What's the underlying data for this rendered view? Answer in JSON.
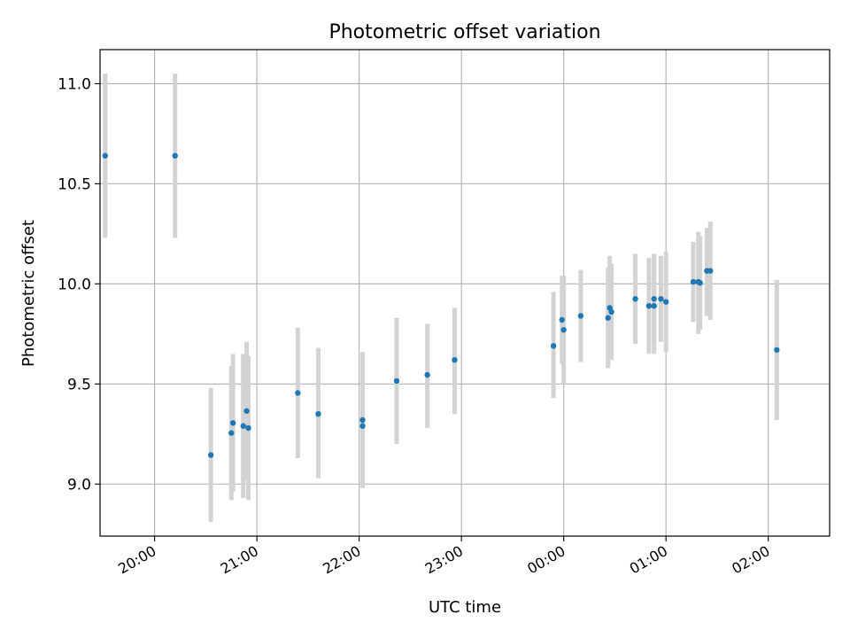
{
  "chart_data": {
    "type": "scatter",
    "title": "Photometric offset variation",
    "xlabel": "UTC time",
    "ylabel": "Photometric offset",
    "xlim": [
      "19:28",
      "02:36"
    ],
    "ylim": [
      8.74,
      11.17
    ],
    "x_ticks": [
      "20:00",
      "21:00",
      "22:00",
      "23:00",
      "00:00",
      "01:00",
      "02:00"
    ],
    "y_ticks": [
      "9.0",
      "9.5",
      "10.0",
      "10.5",
      "11.0"
    ],
    "grid": true,
    "points": [
      {
        "t": "19:31",
        "y": 10.64,
        "err_lo": 10.23,
        "err_hi": 11.05
      },
      {
        "t": "20:12",
        "y": 10.64,
        "err_lo": 10.23,
        "err_hi": 11.05
      },
      {
        "t": "20:33",
        "y": 9.145,
        "err_lo": 8.81,
        "err_hi": 9.48
      },
      {
        "t": "20:45",
        "y": 9.255,
        "err_lo": 8.92,
        "err_hi": 9.59
      },
      {
        "t": "20:46",
        "y": 9.305,
        "err_lo": 8.96,
        "err_hi": 9.65
      },
      {
        "t": "20:52",
        "y": 9.29,
        "err_lo": 8.93,
        "err_hi": 9.65
      },
      {
        "t": "20:54",
        "y": 9.365,
        "err_lo": 9.02,
        "err_hi": 9.71
      },
      {
        "t": "20:55",
        "y": 9.28,
        "err_lo": 8.92,
        "err_hi": 9.64
      },
      {
        "t": "21:24",
        "y": 9.455,
        "err_lo": 9.13,
        "err_hi": 9.78
      },
      {
        "t": "21:36",
        "y": 9.35,
        "err_lo": 9.03,
        "err_hi": 9.68
      },
      {
        "t": "22:02",
        "y": 9.29,
        "err_lo": 8.98,
        "err_hi": 9.6
      },
      {
        "t": "22:02",
        "y": 9.32,
        "err_lo": 9.0,
        "err_hi": 9.66
      },
      {
        "t": "22:22",
        "y": 9.515,
        "err_lo": 9.2,
        "err_hi": 9.83
      },
      {
        "t": "22:40",
        "y": 9.545,
        "err_lo": 9.28,
        "err_hi": 9.8
      },
      {
        "t": "22:56",
        "y": 9.62,
        "err_lo": 9.35,
        "err_hi": 9.88
      },
      {
        "t": "23:54",
        "y": 9.69,
        "err_lo": 9.43,
        "err_hi": 9.96
      },
      {
        "t": "23:59",
        "y": 9.82,
        "err_lo": 9.6,
        "err_hi": 10.04
      },
      {
        "t": "00:00",
        "y": 9.77,
        "err_lo": 9.5,
        "err_hi": 10.04
      },
      {
        "t": "00:10",
        "y": 9.84,
        "err_lo": 9.61,
        "err_hi": 10.07
      },
      {
        "t": "00:26",
        "y": 9.83,
        "err_lo": 9.58,
        "err_hi": 10.08
      },
      {
        "t": "00:27",
        "y": 9.88,
        "err_lo": 9.62,
        "err_hi": 10.14
      },
      {
        "t": "00:28",
        "y": 9.86,
        "err_lo": 9.62,
        "err_hi": 10.1
      },
      {
        "t": "00:42",
        "y": 9.925,
        "err_lo": 9.7,
        "err_hi": 10.15
      },
      {
        "t": "00:50",
        "y": 9.89,
        "err_lo": 9.65,
        "err_hi": 10.13
      },
      {
        "t": "00:53",
        "y": 9.89,
        "err_lo": 9.65,
        "err_hi": 10.13
      },
      {
        "t": "00:53",
        "y": 9.925,
        "err_lo": 9.7,
        "err_hi": 10.15
      },
      {
        "t": "00:57",
        "y": 9.925,
        "err_lo": 9.71,
        "err_hi": 10.14
      },
      {
        "t": "01:00",
        "y": 9.91,
        "err_lo": 9.66,
        "err_hi": 10.16
      },
      {
        "t": "01:16",
        "y": 10.01,
        "err_lo": 9.81,
        "err_hi": 10.21
      },
      {
        "t": "01:19",
        "y": 10.01,
        "err_lo": 9.75,
        "err_hi": 10.26
      },
      {
        "t": "01:20",
        "y": 10.005,
        "err_lo": 9.77,
        "err_hi": 10.24
      },
      {
        "t": "01:24",
        "y": 10.065,
        "err_lo": 9.84,
        "err_hi": 10.28
      },
      {
        "t": "01:26",
        "y": 10.065,
        "err_lo": 9.82,
        "err_hi": 10.31
      },
      {
        "t": "02:05",
        "y": 9.67,
        "err_lo": 9.32,
        "err_hi": 10.02
      }
    ],
    "colors": {
      "point": "#1f77b4",
      "errorbar": "#d3d3d3",
      "grid": "#b0b0b0",
      "axis": "#000000"
    }
  }
}
